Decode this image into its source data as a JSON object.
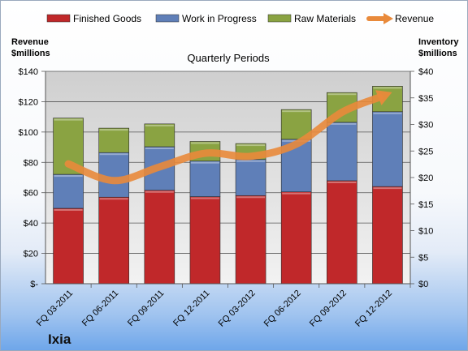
{
  "chart_data": {
    "type": "bar",
    "title": "Quarterly Periods",
    "y_left_label_lines": [
      "Revenue",
      "$millions"
    ],
    "y_right_label_lines": [
      "Inventory",
      "$millions"
    ],
    "categories": [
      "FQ 03-2011",
      "FQ 06-2011",
      "FQ 09-2011",
      "FQ 12-2011",
      "FQ 03-2012",
      "FQ 06-2012",
      "FQ 09-2012",
      "FQ 12-2012"
    ],
    "series": [
      {
        "name": "Finished Goods",
        "kind": "bar",
        "axis": "right",
        "color": "#c0282a",
        "values": [
          14.2,
          16.3,
          17.6,
          16.4,
          16.6,
          17.3,
          19.4,
          18.3
        ]
      },
      {
        "name": "Work in Progress",
        "kind": "bar",
        "axis": "right",
        "color": "#5f7fb8",
        "values": [
          6.4,
          8.4,
          8.2,
          6.7,
          6.8,
          9.9,
          11.0,
          14.1
        ]
      },
      {
        "name": "Raw Materials",
        "kind": "bar",
        "axis": "right",
        "color": "#8aa342",
        "values": [
          10.6,
          4.6,
          4.3,
          3.7,
          3.0,
          5.6,
          5.6,
          4.8
        ]
      },
      {
        "name": "Revenue",
        "kind": "line",
        "axis": "left",
        "color": "#e98a3b",
        "values": [
          79,
          68,
          77,
          86,
          84,
          92,
          113,
          125
        ]
      }
    ],
    "y_left_ticks": [
      "$-",
      "$20",
      "$40",
      "$60",
      "$80",
      "$100",
      "$120",
      "$140"
    ],
    "y_left_range": [
      0,
      140
    ],
    "y_right_ticks": [
      "$0",
      "$5",
      "$10",
      "$15",
      "$20",
      "$25",
      "$30",
      "$35",
      "$40"
    ],
    "y_right_range": [
      0,
      40
    ],
    "grid": true,
    "legend_position": "top"
  },
  "company_name": "Ixia"
}
